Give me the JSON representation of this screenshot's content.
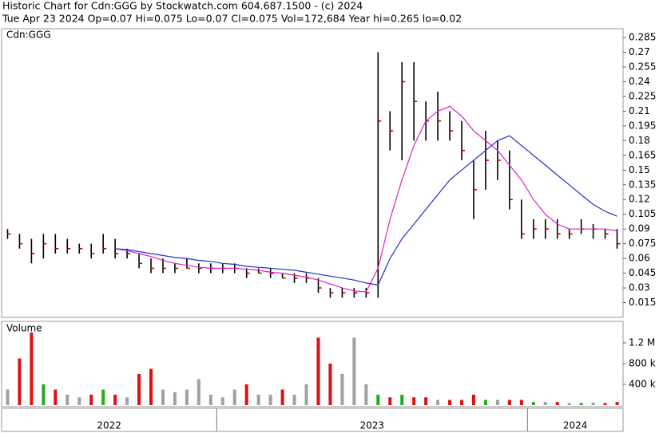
{
  "chart_data": {
    "type": "ohlc",
    "title": "Historic Chart for Cdn:GGG by Stockwatch.com 604.687.1500 - (c) 2024",
    "subtitle": "Tue Apr 23 2024  Op=0.07  Hi=0.075  Lo=0.07  Cl=0.075  Vol=172,684  Year hi=0.265  lo=0.02",
    "symbol": "Cdn:GGG",
    "volume_title": "Volume",
    "categories": [
      "2022",
      "2022",
      "2022",
      "2022",
      "2022",
      "2022",
      "2022",
      "2022",
      "2022",
      "2022",
      "2022",
      "2022",
      "2022",
      "2022",
      "2022",
      "2022",
      "2022",
      "2022",
      "2023",
      "2023",
      "2023",
      "2023",
      "2023",
      "2023",
      "2023",
      "2023",
      "2023",
      "2023",
      "2023",
      "2023",
      "2023",
      "2023",
      "2023",
      "2023",
      "2023",
      "2023",
      "2023",
      "2023",
      "2023",
      "2023",
      "2023",
      "2023",
      "2023",
      "2023",
      "2024",
      "2024",
      "2024",
      "2024",
      "2024",
      "2024",
      "2024",
      "2024"
    ],
    "high": [
      0.09,
      0.085,
      0.08,
      0.085,
      0.085,
      0.08,
      0.075,
      0.075,
      0.085,
      0.08,
      0.07,
      0.065,
      0.06,
      0.06,
      0.055,
      0.06,
      0.055,
      0.055,
      0.055,
      0.055,
      0.05,
      0.05,
      0.05,
      0.045,
      0.045,
      0.045,
      0.04,
      0.03,
      0.03,
      0.03,
      0.03,
      0.27,
      0.21,
      0.26,
      0.26,
      0.22,
      0.23,
      0.21,
      0.2,
      0.16,
      0.19,
      0.18,
      0.17,
      0.12,
      0.1,
      0.1,
      0.1,
      0.09,
      0.1,
      0.095,
      0.09,
      0.09
    ],
    "low": [
      0.08,
      0.07,
      0.055,
      0.06,
      0.065,
      0.065,
      0.065,
      0.06,
      0.065,
      0.06,
      0.06,
      0.05,
      0.045,
      0.045,
      0.045,
      0.05,
      0.045,
      0.045,
      0.045,
      0.045,
      0.04,
      0.045,
      0.04,
      0.04,
      0.035,
      0.035,
      0.025,
      0.02,
      0.02,
      0.02,
      0.02,
      0.02,
      0.17,
      0.16,
      0.18,
      0.18,
      0.18,
      0.18,
      0.16,
      0.1,
      0.13,
      0.14,
      0.11,
      0.08,
      0.08,
      0.08,
      0.08,
      0.08,
      0.085,
      0.08,
      0.08,
      0.07
    ],
    "close": [
      0.085,
      0.075,
      0.065,
      0.075,
      0.07,
      0.07,
      0.07,
      0.065,
      0.07,
      0.065,
      0.065,
      0.055,
      0.05,
      0.05,
      0.05,
      0.05,
      0.05,
      0.05,
      0.05,
      0.05,
      0.045,
      0.045,
      0.045,
      0.04,
      0.04,
      0.04,
      0.03,
      0.025,
      0.025,
      0.025,
      0.025,
      0.2,
      0.19,
      0.24,
      0.22,
      0.2,
      0.2,
      0.19,
      0.17,
      0.13,
      0.16,
      0.16,
      0.12,
      0.085,
      0.09,
      0.09,
      0.085,
      0.085,
      0.09,
      0.09,
      0.085,
      0.075
    ],
    "bar_color": "#000000",
    "close_color": "#cc0000",
    "series": [
      {
        "color": "#e020c0",
        "values": [
          null,
          null,
          null,
          null,
          null,
          null,
          null,
          null,
          null,
          0.07,
          0.068,
          0.065,
          0.062,
          0.058,
          0.055,
          0.053,
          0.051,
          0.05,
          0.05,
          0.05,
          0.049,
          0.048,
          0.046,
          0.045,
          0.043,
          0.041,
          0.038,
          0.034,
          0.03,
          0.027,
          0.026,
          0.05,
          0.1,
          0.14,
          0.175,
          0.2,
          0.21,
          0.215,
          0.205,
          0.19,
          0.18,
          0.17,
          0.155,
          0.14,
          0.12,
          0.105,
          0.095,
          0.09,
          0.09,
          0.09,
          0.09,
          0.088
        ]
      },
      {
        "color": "#2030d0",
        "values": [
          null,
          null,
          null,
          null,
          null,
          null,
          null,
          null,
          null,
          0.07,
          0.069,
          0.067,
          0.065,
          0.063,
          0.061,
          0.06,
          0.058,
          0.057,
          0.055,
          0.054,
          0.052,
          0.051,
          0.05,
          0.049,
          0.048,
          0.046,
          0.044,
          0.042,
          0.04,
          0.038,
          0.035,
          0.033,
          0.06,
          0.08,
          0.095,
          0.11,
          0.125,
          0.14,
          0.15,
          0.16,
          0.17,
          0.18,
          0.185,
          0.175,
          0.165,
          0.155,
          0.145,
          0.135,
          0.125,
          0.115,
          0.108,
          0.103
        ]
      }
    ],
    "ylim": [
      0,
      0.294
    ],
    "yticks": [
      0.015,
      0.03,
      0.045,
      0.06,
      0.075,
      0.09,
      0.105,
      0.12,
      0.135,
      0.15,
      0.165,
      0.18,
      0.195,
      0.21,
      0.225,
      0.24,
      0.255,
      0.27,
      0.285
    ],
    "volume": [
      300000,
      900000,
      1400000,
      400000,
      300000,
      200000,
      150000,
      200000,
      300000,
      200000,
      150000,
      600000,
      700000,
      300000,
      250000,
      300000,
      500000,
      200000,
      150000,
      300000,
      400000,
      200000,
      200000,
      300000,
      200000,
      400000,
      1300000,
      800000,
      600000,
      1300000,
      400000,
      200000,
      150000,
      200000,
      150000,
      150000,
      100000,
      100000,
      100000,
      200000,
      100000,
      100000,
      100000,
      100000,
      60000,
      60000,
      60000,
      40000,
      40000,
      50000,
      40000,
      60000
    ],
    "volume_colors": {
      "up": "#22aa22",
      "down": "#dd1111",
      "flat": "#a0a0a0"
    },
    "volume_ylim": [
      0,
      1600000
    ],
    "volume_yticks": [
      {
        "value": 400000,
        "label": "400 k"
      },
      {
        "value": 800000,
        "label": "800 k"
      },
      {
        "value": 1200000,
        "label": "1.2 M"
      }
    ]
  }
}
